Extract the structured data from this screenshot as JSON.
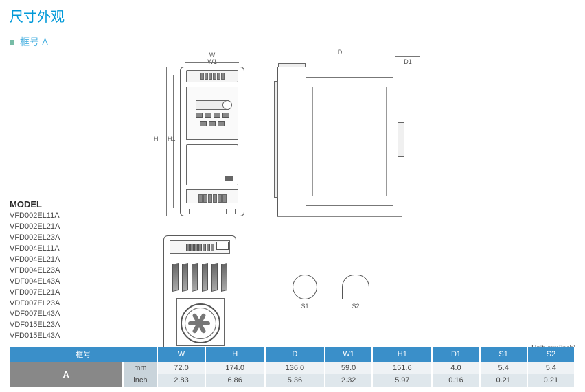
{
  "title": "尺寸外观",
  "subtitle": "框号 A",
  "model_header": "MODEL",
  "models": [
    "VFD002EL11A",
    "VFD002EL21A",
    "VFD002EL23A",
    "VFD004EL11A",
    "VFD004EL21A",
    "VFD004EL23A",
    "VDF004EL43A",
    "VFD007EL21A",
    "VDF007EL23A",
    "VDF007EL43A",
    "VDF015EL23A",
    "VFD015EL43A"
  ],
  "dims": {
    "W": "W",
    "W1": "W1",
    "H": "H",
    "H1": "H1",
    "D": "D",
    "D1": "D1",
    "S1": "S1",
    "S2": "S2"
  },
  "unit_label": "Unit: mm[inch]",
  "table": {
    "header_frame": "框号",
    "columns": [
      "W",
      "H",
      "D",
      "W1",
      "H1",
      "D1",
      "S1",
      "S2"
    ],
    "frame_label": "A",
    "rows": [
      {
        "unit": "mm",
        "values": [
          "72.0",
          "174.0",
          "136.0",
          "59.0",
          "151.6",
          "4.0",
          "5.4",
          "5.4"
        ]
      },
      {
        "unit": "inch",
        "values": [
          "2.83",
          "6.86",
          "5.36",
          "2.32",
          "5.97",
          "0.16",
          "0.21",
          "0.21"
        ]
      }
    ]
  },
  "colors": {
    "title": "#0099d8",
    "bullet": "#77bca6",
    "table_header_bg": "#3a8fc9",
    "row1_bg": "#eef2f5",
    "row2_bg": "#dfe7ec",
    "frame_cell_bg": "#888888"
  }
}
